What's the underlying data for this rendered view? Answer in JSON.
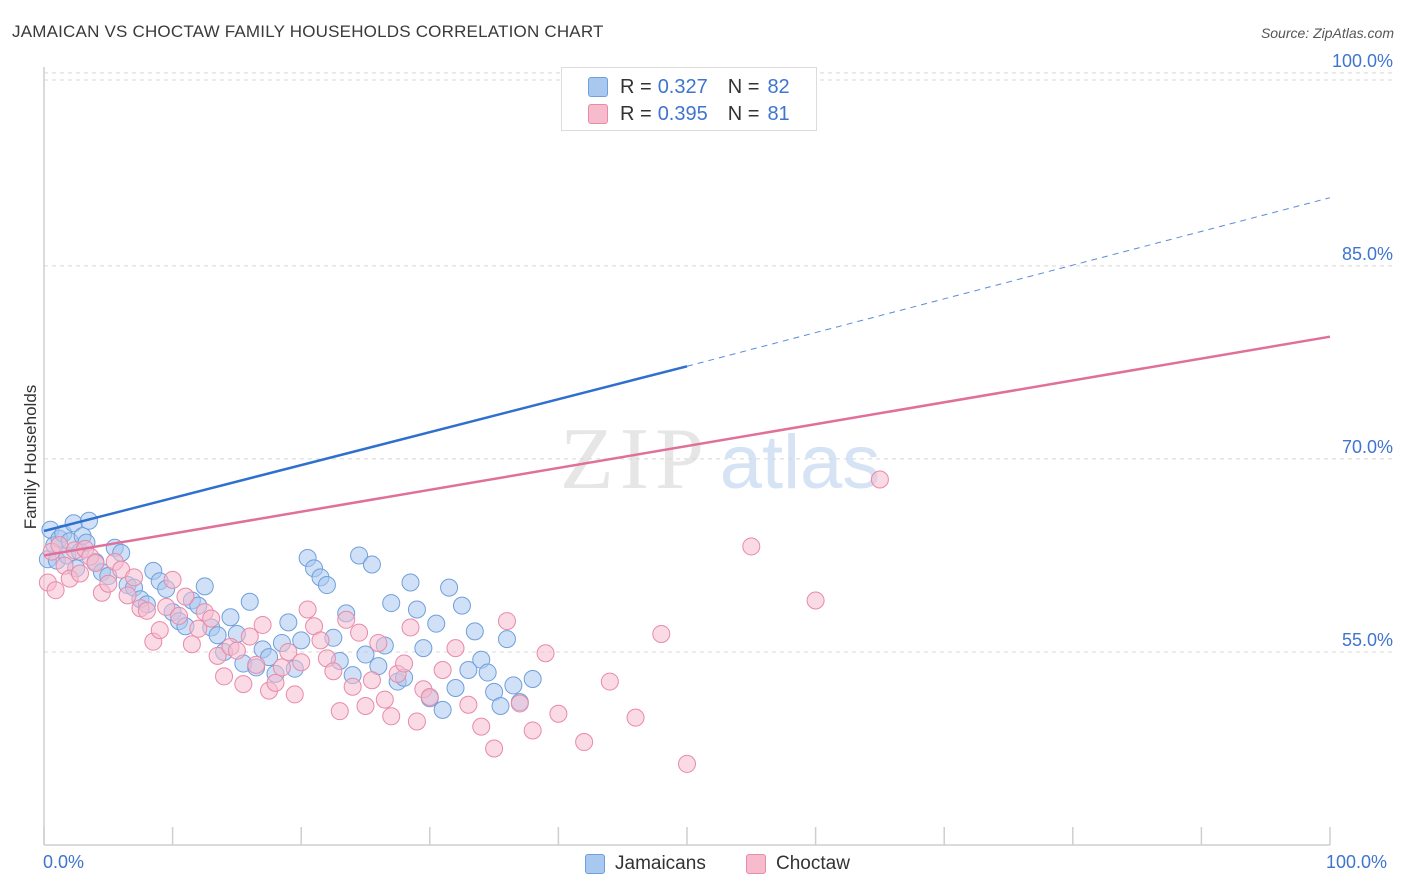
{
  "title": "JAMAICAN VS CHOCTAW FAMILY HOUSEHOLDS CORRELATION CHART",
  "source": "Source: ZipAtlas.com",
  "watermark": {
    "zip": "ZIP",
    "atlas": "atlas"
  },
  "legend": {
    "jamaicans": {
      "r_label": "R =",
      "r_value": "0.327",
      "n_label": "N =",
      "n_value": "82"
    },
    "choctaw": {
      "r_label": "R =",
      "r_value": "0.395",
      "n_label": "N =",
      "n_value": "81"
    }
  },
  "bottom_legend": {
    "jamaicans": "Jamaicans",
    "choctaw": "Choctaw"
  },
  "colors": {
    "blue_fill": "#a9c8f0",
    "blue_stroke": "#6f9fdc",
    "blue_line": "#2f6fcf",
    "pink_fill": "#f6bccd",
    "pink_stroke": "#e98aa8",
    "pink_line": "#e0709a",
    "tick_text": "#3f74cf",
    "grid": "#d8d8d8"
  },
  "chart_data": {
    "type": "scatter",
    "title": "JAMAICAN VS CHOCTAW FAMILY HOUSEHOLDS CORRELATION CHART",
    "xlabel": "",
    "ylabel": "Family Households",
    "x_axis": {
      "min": 0,
      "max": 100,
      "tick_labels": [
        "0.0%",
        "100.0%"
      ]
    },
    "y_axis": {
      "min": 40,
      "max": 101,
      "ticks": [
        55,
        70,
        85,
        100
      ],
      "tick_labels": [
        "55.0%",
        "70.0%",
        "85.0%",
        "100.0%"
      ],
      "grid": true
    },
    "series": [
      {
        "name": "Jamaicans",
        "r": 0.327,
        "n": 82,
        "trend": {
          "x0": 0,
          "y0": 64.4,
          "x1": 50,
          "y1": 77.2,
          "dashed_to_x": 100,
          "dashed_to_y": 90.3
        },
        "points": [
          [
            0.3,
            62.2
          ],
          [
            0.5,
            64.5
          ],
          [
            0.8,
            63.3
          ],
          [
            1.0,
            62.1
          ],
          [
            1.2,
            63.8
          ],
          [
            1.5,
            64.2
          ],
          [
            1.8,
            62.5
          ],
          [
            2.0,
            63.6
          ],
          [
            2.3,
            65.0
          ],
          [
            2.5,
            61.5
          ],
          [
            2.8,
            62.8
          ],
          [
            3.0,
            64.0
          ],
          [
            3.3,
            63.5
          ],
          [
            3.5,
            65.2
          ],
          [
            4.0,
            62.0
          ],
          [
            4.5,
            61.2
          ],
          [
            5.0,
            60.9
          ],
          [
            5.5,
            63.1
          ],
          [
            6.0,
            62.7
          ],
          [
            6.5,
            60.2
          ],
          [
            7.0,
            60.0
          ],
          [
            7.5,
            59.1
          ],
          [
            8.0,
            58.7
          ],
          [
            8.5,
            61.3
          ],
          [
            9.0,
            60.5
          ],
          [
            9.5,
            59.9
          ],
          [
            10.0,
            58.1
          ],
          [
            10.5,
            57.4
          ],
          [
            11.0,
            57.0
          ],
          [
            11.5,
            59.0
          ],
          [
            12.0,
            58.6
          ],
          [
            12.5,
            60.1
          ],
          [
            13.0,
            56.9
          ],
          [
            13.5,
            56.3
          ],
          [
            14.0,
            55.0
          ],
          [
            14.5,
            57.7
          ],
          [
            15.0,
            56.4
          ],
          [
            15.5,
            54.1
          ],
          [
            16.0,
            58.9
          ],
          [
            16.5,
            53.8
          ],
          [
            17.0,
            55.2
          ],
          [
            17.5,
            54.6
          ],
          [
            18.0,
            53.3
          ],
          [
            18.5,
            55.7
          ],
          [
            19.0,
            57.3
          ],
          [
            19.5,
            53.7
          ],
          [
            20.0,
            55.9
          ],
          [
            20.5,
            62.3
          ],
          [
            21.0,
            61.5
          ],
          [
            21.5,
            60.8
          ],
          [
            22.0,
            60.2
          ],
          [
            22.5,
            56.1
          ],
          [
            23.0,
            54.3
          ],
          [
            23.5,
            58.0
          ],
          [
            24.0,
            53.2
          ],
          [
            24.5,
            62.5
          ],
          [
            25.0,
            54.8
          ],
          [
            25.5,
            61.8
          ],
          [
            26.0,
            53.9
          ],
          [
            26.5,
            55.5
          ],
          [
            27.0,
            58.8
          ],
          [
            27.5,
            52.7
          ],
          [
            28.0,
            53.0
          ],
          [
            28.5,
            60.4
          ],
          [
            29.0,
            58.3
          ],
          [
            29.5,
            55.3
          ],
          [
            30.0,
            51.4
          ],
          [
            30.5,
            57.2
          ],
          [
            31.0,
            50.5
          ],
          [
            31.5,
            60.0
          ],
          [
            32.0,
            52.2
          ],
          [
            32.5,
            58.6
          ],
          [
            33.0,
            53.6
          ],
          [
            33.5,
            56.6
          ],
          [
            34.0,
            54.4
          ],
          [
            34.5,
            53.4
          ],
          [
            35.0,
            51.9
          ],
          [
            35.5,
            50.8
          ],
          [
            36.0,
            56.0
          ],
          [
            36.5,
            52.4
          ],
          [
            37.0,
            51.1
          ],
          [
            38.0,
            52.9
          ]
        ]
      },
      {
        "name": "Choctaw",
        "r": 0.395,
        "n": 81,
        "trend": {
          "x0": 0,
          "y0": 62.5,
          "x1": 100,
          "y1": 79.5
        },
        "points": [
          [
            0.3,
            60.4
          ],
          [
            0.6,
            62.8
          ],
          [
            0.9,
            59.8
          ],
          [
            1.2,
            63.3
          ],
          [
            1.6,
            61.7
          ],
          [
            2.0,
            60.7
          ],
          [
            2.4,
            62.9
          ],
          [
            2.8,
            61.1
          ],
          [
            3.2,
            63.0
          ],
          [
            3.6,
            62.4
          ],
          [
            4.0,
            61.9
          ],
          [
            4.5,
            59.6
          ],
          [
            5.0,
            60.3
          ],
          [
            5.5,
            62.0
          ],
          [
            6.0,
            61.4
          ],
          [
            6.5,
            59.4
          ],
          [
            7.0,
            60.8
          ],
          [
            7.5,
            58.4
          ],
          [
            8.0,
            58.2
          ],
          [
            8.5,
            55.8
          ],
          [
            9.0,
            56.7
          ],
          [
            9.5,
            58.5
          ],
          [
            10.0,
            60.6
          ],
          [
            10.5,
            57.8
          ],
          [
            11.0,
            59.3
          ],
          [
            11.5,
            55.6
          ],
          [
            12.0,
            56.8
          ],
          [
            12.5,
            58.1
          ],
          [
            13.0,
            57.6
          ],
          [
            13.5,
            54.7
          ],
          [
            14.0,
            53.1
          ],
          [
            14.5,
            55.4
          ],
          [
            15.0,
            55.1
          ],
          [
            15.5,
            52.5
          ],
          [
            16.0,
            56.2
          ],
          [
            16.5,
            54.0
          ],
          [
            17.0,
            57.1
          ],
          [
            17.5,
            52.0
          ],
          [
            18.0,
            52.6
          ],
          [
            18.5,
            53.8
          ],
          [
            19.0,
            55.0
          ],
          [
            19.5,
            51.7
          ],
          [
            20.0,
            54.2
          ],
          [
            20.5,
            58.3
          ],
          [
            21.0,
            57.0
          ],
          [
            21.5,
            55.9
          ],
          [
            22.0,
            54.5
          ],
          [
            22.5,
            53.5
          ],
          [
            23.0,
            50.4
          ],
          [
            23.5,
            57.5
          ],
          [
            24.0,
            52.3
          ],
          [
            24.5,
            56.5
          ],
          [
            25.0,
            50.8
          ],
          [
            25.5,
            52.8
          ],
          [
            26.0,
            55.7
          ],
          [
            26.5,
            51.3
          ],
          [
            27.0,
            50.0
          ],
          [
            27.5,
            53.3
          ],
          [
            28.0,
            54.1
          ],
          [
            28.5,
            56.9
          ],
          [
            29.0,
            49.6
          ],
          [
            29.5,
            52.1
          ],
          [
            30.0,
            51.5
          ],
          [
            31.0,
            53.6
          ],
          [
            32.0,
            55.3
          ],
          [
            33.0,
            50.9
          ],
          [
            34.0,
            49.2
          ],
          [
            35.0,
            47.5
          ],
          [
            36.0,
            57.4
          ],
          [
            37.0,
            51.0
          ],
          [
            38.0,
            48.9
          ],
          [
            39.0,
            54.9
          ],
          [
            40.0,
            50.2
          ],
          [
            42.0,
            48.0
          ],
          [
            44.0,
            52.7
          ],
          [
            46.0,
            49.9
          ],
          [
            48.0,
            56.4
          ],
          [
            50.0,
            46.3
          ],
          [
            55.0,
            63.2
          ],
          [
            60.0,
            59.0
          ],
          [
            65.0,
            68.4
          ]
        ]
      }
    ]
  }
}
